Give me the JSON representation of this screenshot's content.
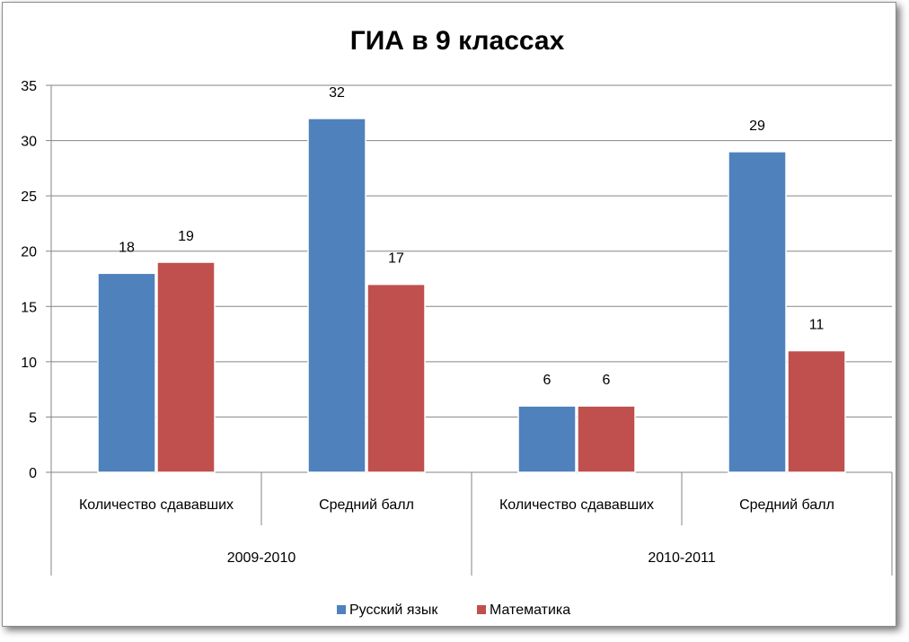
{
  "chart_data": {
    "type": "bar",
    "title": "ГИА в 9 классах",
    "xlabel": "",
    "ylabel": "",
    "ylim": [
      0,
      35
    ],
    "yticks": [
      0,
      5,
      10,
      15,
      20,
      25,
      30,
      35
    ],
    "grid": true,
    "legend_position": "bottom",
    "groups": [
      {
        "label": "2009-2010",
        "categories": [
          "Количество сдававших",
          "Средний балл"
        ]
      },
      {
        "label": "2010-2011",
        "categories": [
          "Количество сдававших",
          "Средний балл"
        ]
      }
    ],
    "categories": [
      "Количество сдававших",
      "Средний балл",
      "Количество сдававших",
      "Средний балл"
    ],
    "series": [
      {
        "name": "Русский язык",
        "color": "#4F81BD",
        "values": [
          18,
          32,
          6,
          29
        ]
      },
      {
        "name": "Математика",
        "color": "#C0504D",
        "values": [
          19,
          17,
          6,
          11
        ]
      }
    ]
  }
}
